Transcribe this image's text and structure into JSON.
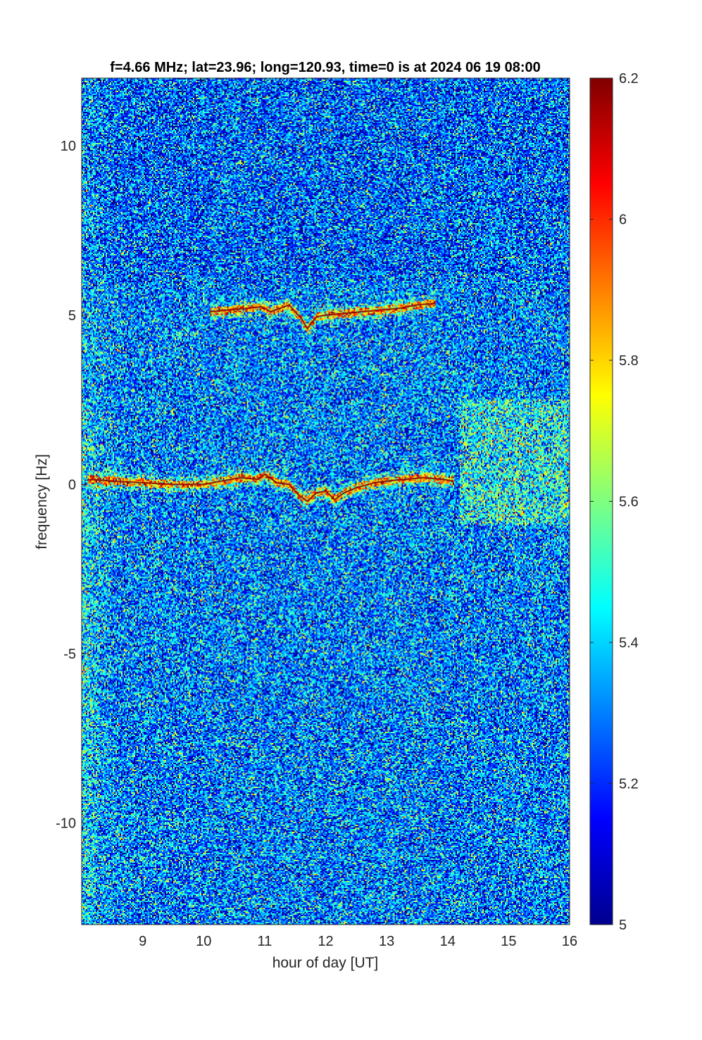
{
  "chart_data": {
    "type": "heatmap",
    "title": "f=4.66 MHz;  lat=23.96; long=120.93, time=0 is at 2024 06 19 08:00",
    "xlabel": "hour of day [UT]",
    "ylabel": "frequency [Hz]",
    "xlim": [
      8,
      16
    ],
    "ylim": [
      -13,
      12
    ],
    "xticks": [
      "9",
      "10",
      "11",
      "12",
      "13",
      "14",
      "15",
      "16"
    ],
    "yticks": [
      "-10",
      "-5",
      "0",
      "5",
      "10"
    ],
    "colorbar": {
      "colormap": "jet",
      "clim": [
        5,
        6.2
      ],
      "ticks": [
        "5",
        "5.2",
        "5.4",
        "5.6",
        "5.8",
        "6",
        "6.2"
      ]
    },
    "traces": [
      {
        "points": [
          [
            8.1,
            0.15
          ],
          [
            8.5,
            0.1
          ],
          [
            9.0,
            0.05
          ],
          [
            9.5,
            0.0
          ],
          [
            10.0,
            0.0
          ],
          [
            10.3,
            0.1
          ],
          [
            10.6,
            0.2
          ],
          [
            10.9,
            0.15
          ],
          [
            11.0,
            0.3
          ],
          [
            11.2,
            0.05
          ],
          [
            11.4,
            0.0
          ],
          [
            11.55,
            -0.3
          ],
          [
            11.7,
            -0.5
          ],
          [
            11.85,
            -0.25
          ],
          [
            12.0,
            -0.2
          ],
          [
            12.15,
            -0.45
          ],
          [
            12.3,
            -0.25
          ],
          [
            12.5,
            -0.1
          ],
          [
            12.8,
            0.05
          ],
          [
            13.0,
            0.1
          ],
          [
            13.3,
            0.15
          ],
          [
            13.6,
            0.2
          ],
          [
            13.9,
            0.15
          ],
          [
            14.1,
            0.1
          ]
        ]
      },
      {
        "points": [
          [
            10.1,
            5.1
          ],
          [
            10.4,
            5.15
          ],
          [
            10.7,
            5.2
          ],
          [
            10.95,
            5.25
          ],
          [
            11.1,
            5.1
          ],
          [
            11.25,
            5.2
          ],
          [
            11.4,
            5.3
          ],
          [
            11.5,
            5.1
          ],
          [
            11.6,
            4.9
          ],
          [
            11.7,
            4.6
          ],
          [
            11.85,
            4.95
          ],
          [
            12.0,
            5.0
          ],
          [
            12.3,
            5.05
          ],
          [
            12.6,
            5.1
          ],
          [
            12.9,
            5.15
          ],
          [
            13.2,
            5.2
          ],
          [
            13.5,
            5.3
          ],
          [
            13.8,
            5.35
          ]
        ]
      }
    ],
    "noise_baseline": 5.3,
    "noise_spread": 0.2
  }
}
